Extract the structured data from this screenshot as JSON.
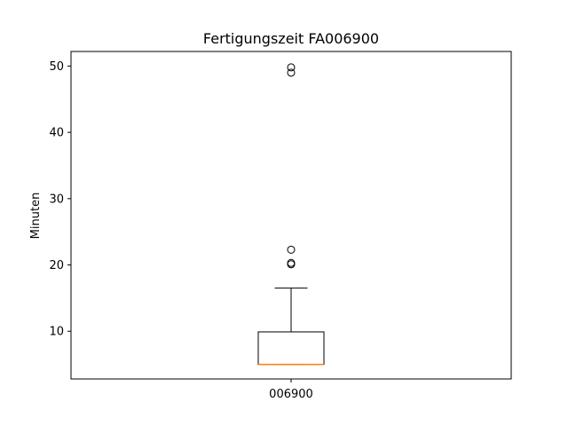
{
  "chart_data": {
    "type": "boxplot",
    "title": "Fertigungszeit FA006900",
    "xlabel": "",
    "ylabel": "Minuten",
    "ylim": [
      2.8,
      52.2
    ],
    "yticks": [
      10,
      20,
      30,
      40,
      50
    ],
    "grid": false,
    "categories": [
      "006900"
    ],
    "boxes": [
      {
        "category": "006900",
        "whisker_low": 5,
        "q1": 5,
        "median": 5,
        "q3": 9.9,
        "whisker_high": 16.5,
        "outliers": [
          20.1,
          20.3,
          22.3,
          49.0,
          49.8
        ]
      }
    ],
    "colors": {
      "box": "#000000",
      "median": "#ff7f0e",
      "outlier": "#000000"
    }
  }
}
